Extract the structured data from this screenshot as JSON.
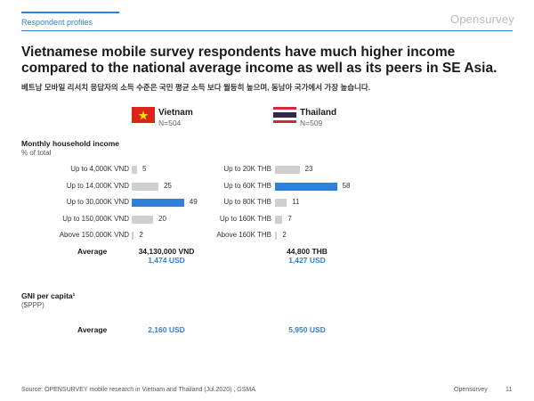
{
  "header": {
    "section_label": "Respondent profiles",
    "logo": "Opensurvey",
    "headline": "Vietnamese mobile survey respondents have much higher income compared to the national average income as well as its peers in SE Asia.",
    "subline": "베트남 모바일 리서치 응답자의 소득 수준은 국민 평균 소득 보다 월등히 높으며, 동남아 국가에서 가장 높습니다."
  },
  "countries": [
    {
      "name": "Vietnam",
      "n": "N=504"
    },
    {
      "name": "Thailand",
      "n": "N=509"
    }
  ],
  "income_section": {
    "title": "Monthly household income",
    "subtitle": "% of total"
  },
  "gni_section": {
    "title": "GNI per capita¹",
    "subtitle": "($PPP)"
  },
  "average_label": "Average",
  "vietnam_income_average": "34,130,000 VND",
  "vietnam_income_usd": "1,474 USD",
  "thailand_income_average": "44,800 THB",
  "thailand_income_usd": "1,427 USD",
  "vietnam_gni_usd": "2,160 USD",
  "thailand_gni_usd": "5,950 USD",
  "colors": {
    "accent": "#2f80d8",
    "bar": "#cfcfcf",
    "vietnam_red": "#da251d",
    "vietnam_star": "#ffde00",
    "thai_red": "#d3283d",
    "thai_blue": "#2d2a4a"
  },
  "chart_data": [
    {
      "type": "bar",
      "orientation": "horizontal",
      "title": "Monthly household income",
      "ylabel": "% of total",
      "series": [
        {
          "name": "Vietnam",
          "values": [
            5,
            25,
            49,
            20,
            2
          ]
        }
      ],
      "categories": [
        "Up to 4,000K VND",
        "Up to 14,000K VND",
        "Up to 30,000K VND",
        "Up to 150,000K VND",
        "Above 150,000K VND"
      ],
      "highlight_index": 2,
      "xlim": [
        0,
        100
      ]
    },
    {
      "type": "bar",
      "orientation": "horizontal",
      "title": "Monthly household income",
      "ylabel": "% of total",
      "series": [
        {
          "name": "Thailand",
          "values": [
            23,
            58,
            11,
            7,
            2
          ]
        }
      ],
      "categories": [
        "Up to 20K THB",
        "Up to 60K THB",
        "Up to 80K THB",
        "Up to 160K THB",
        "Above 160K THB"
      ],
      "highlight_index": 1,
      "xlim": [
        0,
        100
      ]
    }
  ],
  "footer": {
    "source": "Source: OPENSURVEY mobile research in Vietnam and Thailand (Jul.2020) , GSMA",
    "brand": "Opensurvey",
    "page": "11"
  }
}
